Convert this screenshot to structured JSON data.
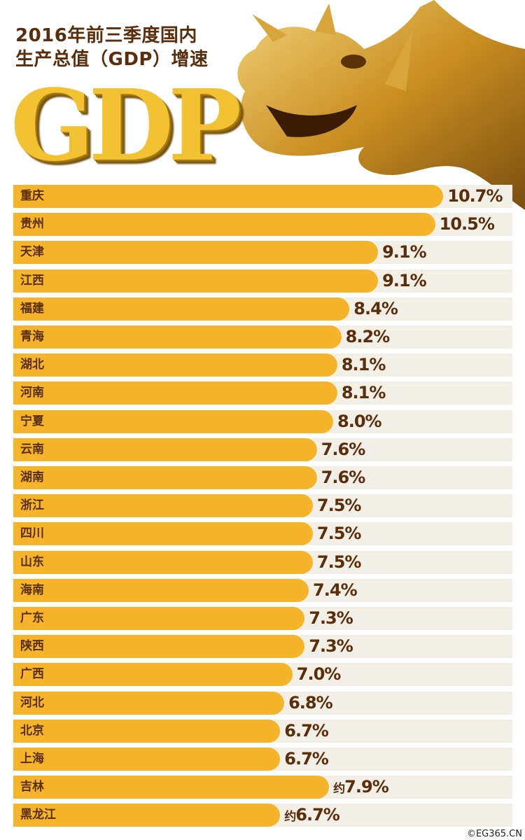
{
  "title_line1": "2016年前三季度国内",
  "title_line2": "生产总值（GDP）增速",
  "logo_text": "GDP",
  "credit": "©EG365.CN",
  "colors": {
    "bar": "#f6b42a",
    "track": "#f2f0e6",
    "text": "#5a2e0c"
  },
  "chart_data": {
    "type": "bar",
    "orientation": "horizontal",
    "title": "2016年前三季度国内生产总值（GDP）增速",
    "unit": "%",
    "categories": [
      "重庆",
      "贵州",
      "天津",
      "江西",
      "福建",
      "青海",
      "湖北",
      "河南",
      "宁夏",
      "云南",
      "湖南",
      "浙江",
      "四川",
      "山东",
      "海南",
      "广东",
      "陕西",
      "广西",
      "河北",
      "北京",
      "上海",
      "吉林",
      "黑龙江"
    ],
    "values": [
      10.7,
      10.5,
      9.1,
      9.1,
      8.4,
      8.2,
      8.1,
      8.1,
      8.0,
      7.6,
      7.6,
      7.5,
      7.5,
      7.5,
      7.4,
      7.3,
      7.3,
      7.0,
      6.8,
      6.7,
      6.7,
      7.9,
      6.7
    ],
    "labels": [
      "10.7%",
      "10.5%",
      "9.1%",
      "9.1%",
      "8.4%",
      "8.2%",
      "8.1%",
      "8.1%",
      "8.0%",
      "7.6%",
      "7.6%",
      "7.5%",
      "7.5%",
      "7.5%",
      "7.4%",
      "7.3%",
      "7.3%",
      "7.0%",
      "6.8%",
      "6.7%",
      "6.7%",
      "7.9%",
      "6.7%"
    ],
    "label_prefixes": [
      "",
      "",
      "",
      "",
      "",
      "",
      "",
      "",
      "",
      "",
      "",
      "",
      "",
      "",
      "",
      "",
      "",
      "",
      "",
      "",
      "",
      "约",
      "约"
    ]
  }
}
